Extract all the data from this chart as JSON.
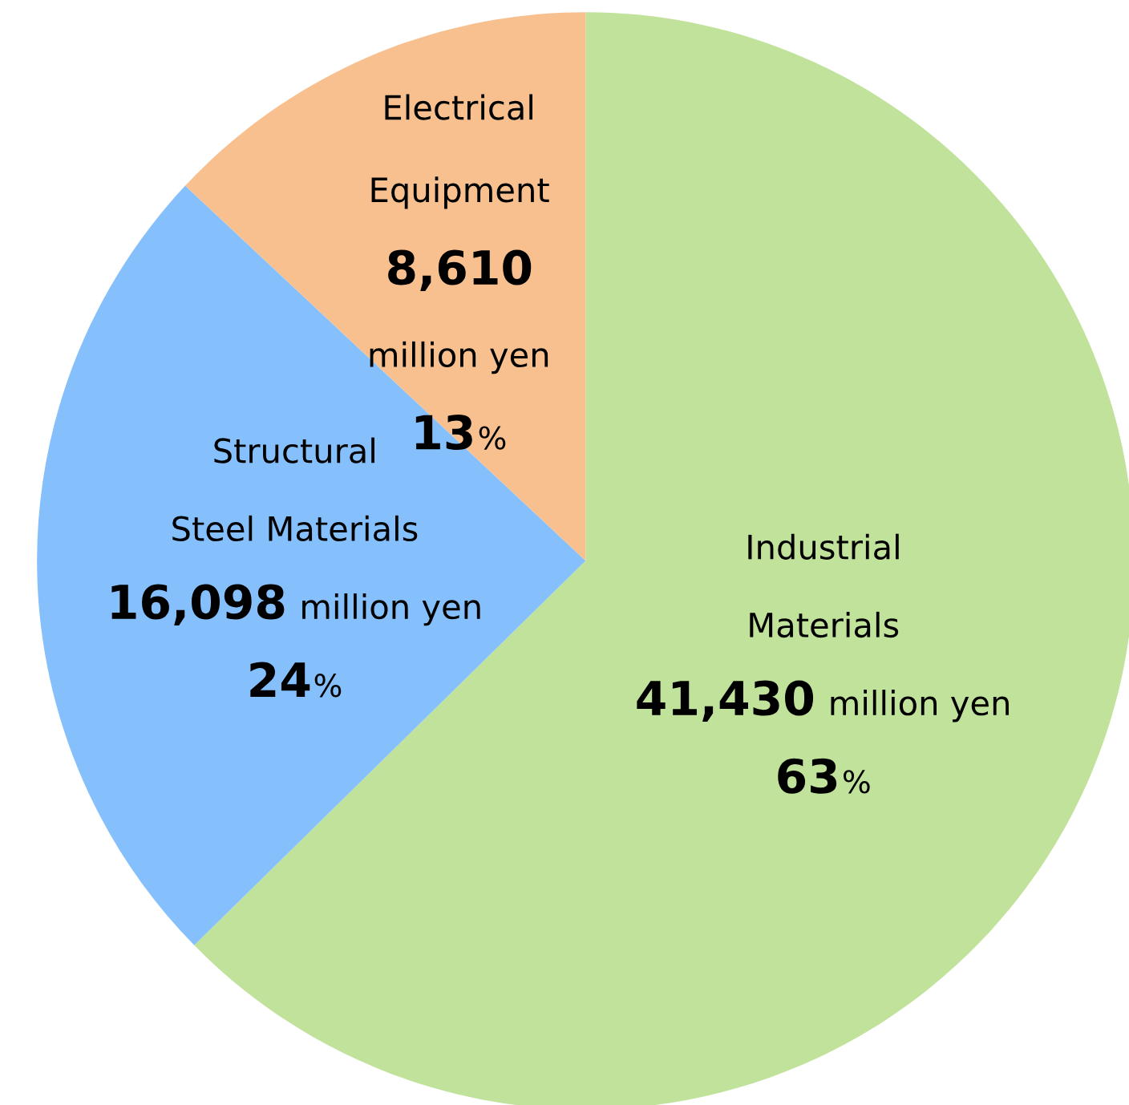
{
  "chart_data": {
    "type": "pie",
    "categories": [
      "Industrial\nMaterials",
      "Structural\nSteel Materials",
      "Electrical\nEquipment"
    ],
    "values": [
      41430,
      16098,
      8610
    ],
    "colors": [
      "#c0e29a",
      "#86c0fc",
      "#f8c08f"
    ],
    "value_labels": [
      "41,430",
      "16,098",
      "8,610"
    ],
    "annotations": [
      {
        "text": "million yen",
        "x": "Industrial\nMaterials"
      },
      {
        "text": "63%",
        "x": "Industrial\nMaterials"
      },
      {
        "text": "million yen",
        "x": "Structural\nSteel Materials"
      },
      {
        "text": "24%",
        "x": "Structural\nSteel Materials"
      },
      {
        "text": "million yen",
        "x": "Electrical\nEquipment"
      },
      {
        "text": "13%",
        "x": "Electrical\nEquipment"
      }
    ]
  }
}
